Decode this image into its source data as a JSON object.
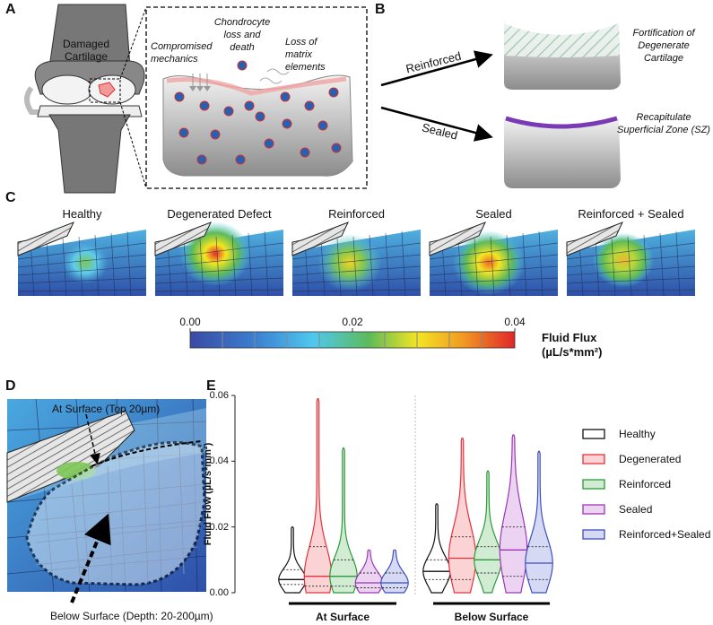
{
  "panels": {
    "A": {
      "letter": "A",
      "damaged": "Damaged Cartilage",
      "compromised": "Compromised mechanics",
      "chondrocyte": "Chondrocyte loss and death",
      "matrix": "Loss of matrix elements"
    },
    "B": {
      "letter": "B",
      "reinforced": "Reinforced",
      "sealed": "Sealed",
      "fortification": "Fortification of Degenerate Cartilage",
      "recapitulate": "Recapitulate Superficial Zone (SZ)"
    },
    "C": {
      "letter": "C",
      "titles": [
        "Healthy",
        "Degenerated Defect",
        "Reinforced",
        "Sealed",
        "Reinforced + Sealed"
      ],
      "colorbar": {
        "label": "Fluid Flux",
        "unit": "(µL/s*mm²)",
        "lim": [
          0,
          0.04
        ],
        "ticks": [
          {
            "value": 0,
            "label": "0.00"
          },
          {
            "value": 0.02,
            "label": "0.02"
          },
          {
            "value": 0.04,
            "label": "0.04"
          }
        ]
      }
    },
    "D": {
      "letter": "D",
      "at_surface": "At Surface (Top 20µm)",
      "below_surface": "Below Surface (Depth: 20-200µm)"
    },
    "E": {
      "letter": "E"
    }
  },
  "chart_data": {
    "type": "violin",
    "y_label": "Fluid Flow (µL/s*mm²)",
    "groups": [
      "At Surface",
      "Below Surface"
    ],
    "ylim": [
      0,
      0.06
    ],
    "yticks": [
      {
        "value": 0,
        "label": "0.00"
      },
      {
        "value": 0.02,
        "label": "0.02"
      },
      {
        "value": 0.04,
        "label": "0.04"
      },
      {
        "value": 0.06,
        "label": "0.06"
      }
    ],
    "series": [
      {
        "name": "Healthy",
        "color": "#111111",
        "fill": "#ffffff",
        "min": [
          0,
          0
        ],
        "q1": [
          0.0025,
          0.004
        ],
        "median": [
          0.004,
          0.0065
        ],
        "q3": [
          0.007,
          0.01
        ],
        "max": [
          0.02,
          0.027
        ]
      },
      {
        "name": "Degenerated",
        "color": "#e8303a",
        "fill": "#fbd3d4",
        "min": [
          0,
          0
        ],
        "q1": [
          0.002,
          0.004
        ],
        "median": [
          0.005,
          0.0105
        ],
        "q3": [
          0.014,
          0.017
        ],
        "max": [
          0.059,
          0.047
        ]
      },
      {
        "name": "Reinforced",
        "color": "#2a9a3a",
        "fill": "#d2ecd3",
        "min": [
          0,
          0
        ],
        "q1": [
          0.002,
          0.006
        ],
        "median": [
          0.005,
          0.01
        ],
        "q3": [
          0.01,
          0.014
        ],
        "max": [
          0.044,
          0.037
        ]
      },
      {
        "name": "Sealed",
        "color": "#9b36b6",
        "fill": "#ecd3f2",
        "min": [
          0,
          0
        ],
        "q1": [
          0.0015,
          0.005
        ],
        "median": [
          0.003,
          0.013
        ],
        "q3": [
          0.006,
          0.02
        ],
        "max": [
          0.013,
          0.048
        ]
      },
      {
        "name": "Reinforced+Sealed",
        "color": "#3c4fc1",
        "fill": "#d5d9f3",
        "min": [
          0,
          0
        ],
        "q1": [
          0.0015,
          0.004
        ],
        "median": [
          0.003,
          0.009
        ],
        "q3": [
          0.006,
          0.014
        ],
        "max": [
          0.013,
          0.043
        ]
      }
    ]
  }
}
